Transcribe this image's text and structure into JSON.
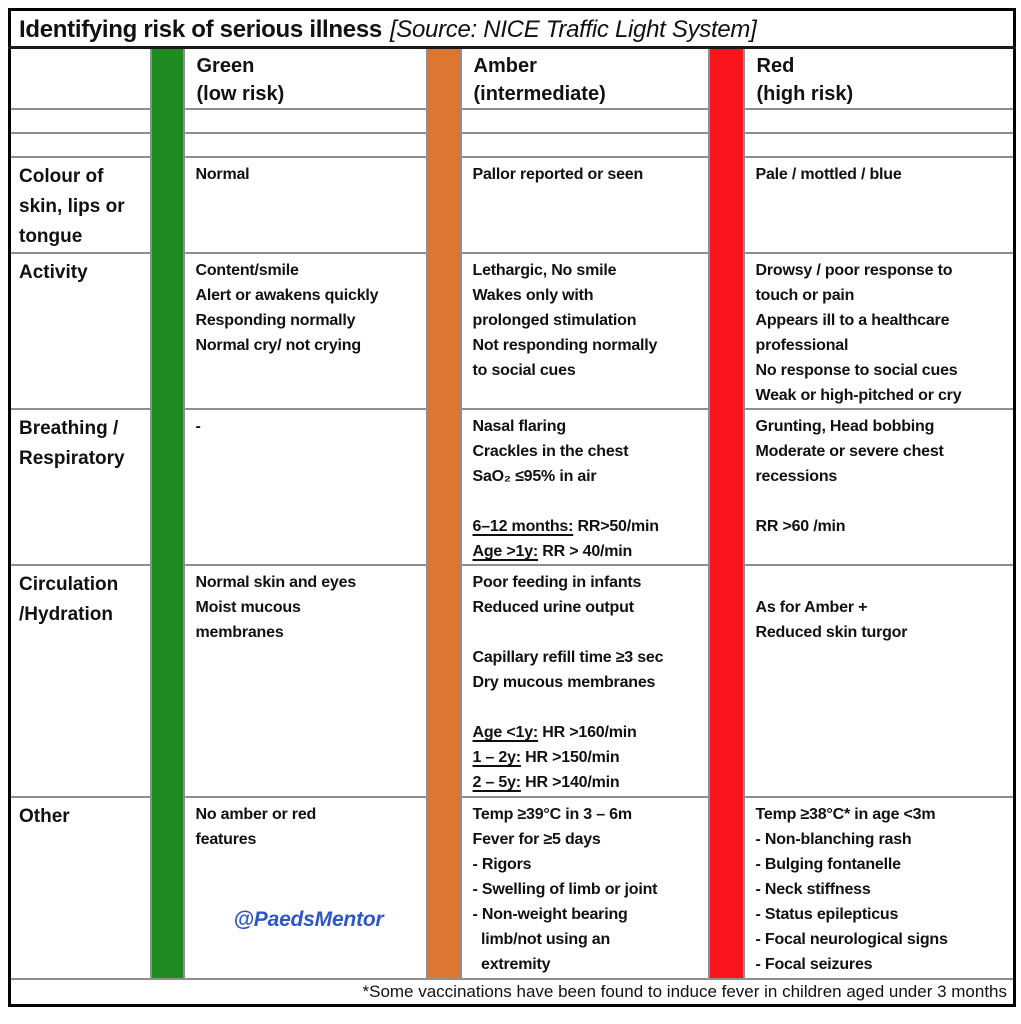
{
  "title": {
    "main": "Identifying risk of serious illness",
    "source": "[Source: NICE Traffic Light System]"
  },
  "columns": [
    {
      "key": "green",
      "header": "Green\n(low risk)",
      "color": "#1e8a1f"
    },
    {
      "key": "amber",
      "header": "Amber\n(intermediate)",
      "color": "#dd7631"
    },
    {
      "key": "red",
      "header": "Red\n(high risk)",
      "color": "#fa141c"
    }
  ],
  "rows": [
    {
      "label": "Colour of\nskin, lips or\ntongue",
      "green": [
        "Normal"
      ],
      "amber": [
        "Pallor reported or seen"
      ],
      "red": [
        "Pale / mottled / blue"
      ]
    },
    {
      "label": "Activity",
      "green": [
        "Content/smile",
        "Alert or awakens quickly",
        "Responding normally",
        "Normal cry/ not crying"
      ],
      "amber": [
        "Lethargic, No smile",
        "Wakes only with",
        "prolonged stimulation",
        "Not responding normally",
        "to social cues"
      ],
      "red": [
        "Drowsy / poor response to",
        "touch or pain",
        "Appears ill to a healthcare",
        "professional",
        "No response to social cues",
        "Weak or high-pitched or cry"
      ]
    },
    {
      "label": "Breathing /\nRespiratory",
      "green": [
        "-"
      ],
      "amber": [
        "Nasal flaring",
        "Crackles in the chest",
        "SaO₂ ≤95% in air",
        "",
        [
          {
            "t": "6–12 months:",
            "u": true
          },
          {
            "t": " RR>50/min"
          }
        ],
        [
          {
            "t": "Age >1y:",
            "u": true
          },
          {
            "t": " RR > 40/min"
          }
        ]
      ],
      "red": [
        "Grunting, Head bobbing",
        "Moderate or severe chest",
        "recessions",
        "",
        "RR >60 /min"
      ]
    },
    {
      "label": "Circulation\n/Hydration",
      "green": [
        "Normal skin and eyes",
        "Moist mucous",
        "membranes"
      ],
      "amber": [
        "Poor feeding in infants",
        "Reduced urine output",
        "",
        "Capillary refill time ≥3 sec",
        "Dry mucous membranes",
        "",
        [
          {
            "t": "Age <1y:",
            "u": true
          },
          {
            "t": " HR >160/min"
          }
        ],
        [
          {
            "t": "1 – 2y:",
            "u": true
          },
          {
            "t": " HR >150/min"
          }
        ],
        [
          {
            "t": "2 – 5y:",
            "u": true
          },
          {
            "t": " HR >140/min"
          }
        ]
      ],
      "red": [
        "",
        "As for Amber +",
        "Reduced skin turgor"
      ]
    },
    {
      "label": "Other",
      "green": [
        "No amber or red",
        "features"
      ],
      "amber": [
        "Temp ≥39°C in 3 – 6m",
        "Fever for ≥5 days",
        "- Rigors",
        "- Swelling of limb or joint",
        "- Non-weight bearing",
        "  limb/not using an",
        "  extremity"
      ],
      "red": [
        "Temp ≥38°C* in age <3m",
        "- Non-blanching rash",
        "- Bulging fontanelle",
        "- Neck stiffness",
        "- Status epilepticus",
        "- Focal neurological signs",
        "- Focal seizures"
      ]
    }
  ],
  "watermark": {
    "text": "@PaedsMentor",
    "color": "#2e56c8"
  },
  "footnote": "*Some vaccinations have been found to induce fever in children aged under 3 months"
}
